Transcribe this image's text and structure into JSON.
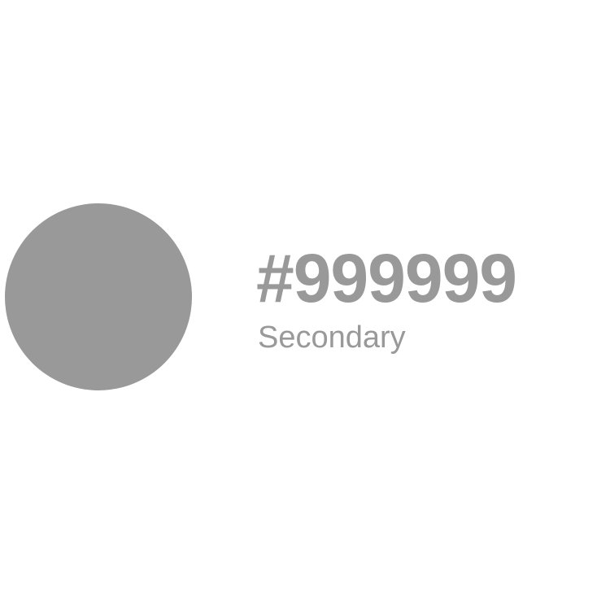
{
  "swatch": {
    "color": "#999999",
    "hex_label": "#999999",
    "name": "Secondary"
  }
}
